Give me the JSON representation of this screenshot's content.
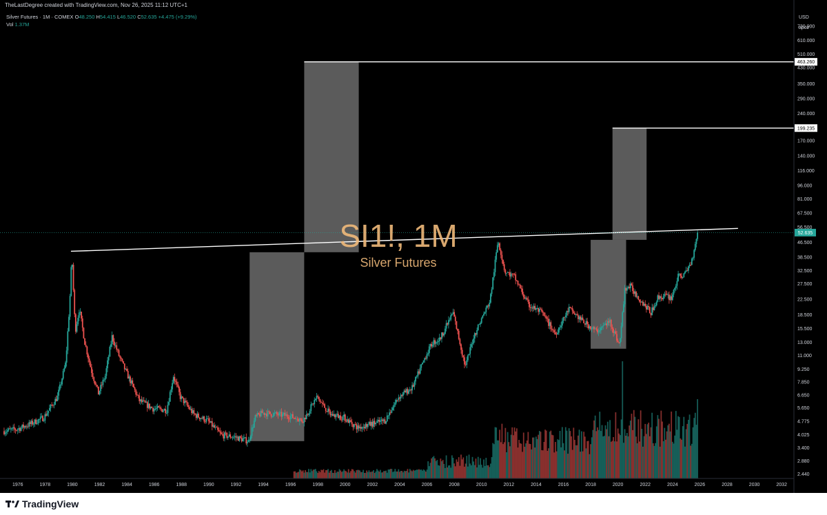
{
  "header": {
    "credit": "TheLastDegree created with TradingView.com, Nov 26, 2025 11:12 UTC+1",
    "symbol_desc": "Silver Futures · 1M · COMEX",
    "open_label": "O",
    "open": "48.250",
    "high_label": "H",
    "high": "54.415",
    "low_label": "L",
    "low": "46.520",
    "close_label": "C",
    "close": "52.635",
    "change": "+4.475 (+9.29%)",
    "vol_label": "Vol",
    "vol": "1.37M"
  },
  "price_axis": {
    "currency": "USD",
    "mode": "apoz"
  },
  "watermark": {
    "symbol": "SI1!, 1M",
    "name": "Silver Futures"
  },
  "footer": {
    "brand": "TradingView"
  },
  "colors": {
    "background": "#000000",
    "up": "#26a69a",
    "down": "#ef5350",
    "watermark": "#f0b97a",
    "box": "#7a7a7a"
  },
  "chart_data": {
    "type": "candlestick",
    "x_ticks": [
      "1976",
      "1978",
      "1980",
      "1982",
      "1984",
      "1986",
      "1988",
      "1990",
      "1992",
      "1994",
      "1996",
      "1998",
      "2000",
      "2002",
      "2004",
      "2006",
      "2008",
      "2010",
      "2012",
      "2014",
      "2016",
      "2018",
      "2020",
      "2022",
      "2024",
      "2026",
      "2028",
      "2030",
      "2032"
    ],
    "y_ticks": [
      "730.000",
      "610.000",
      "510.000",
      "430.000",
      "350.000",
      "290.000",
      "240.000",
      "200.000",
      "170.000",
      "140.000",
      "116.000",
      "96.000",
      "81.000",
      "67.500",
      "56.500",
      "46.500",
      "38.500",
      "32.500",
      "27.500",
      "22.500",
      "18.500",
      "15.500",
      "13.000",
      "11.000",
      "9.250",
      "7.850",
      "6.650",
      "5.650",
      "4.775",
      "4.025",
      "3.400",
      "2.880",
      "2.440"
    ],
    "y_scale": "log",
    "price_path": [
      [
        1975.0,
        4.2
      ],
      [
        1976.0,
        4.3
      ],
      [
        1977.0,
        4.6
      ],
      [
        1978.0,
        5.0
      ],
      [
        1979.0,
        6.5
      ],
      [
        1979.6,
        10
      ],
      [
        1979.9,
        22
      ],
      [
        1980.05,
        40
      ],
      [
        1980.3,
        15
      ],
      [
        1980.6,
        20
      ],
      [
        1981.0,
        13
      ],
      [
        1981.5,
        9
      ],
      [
        1982.0,
        6.8
      ],
      [
        1982.5,
        8.5
      ],
      [
        1983.0,
        14
      ],
      [
        1983.5,
        11
      ],
      [
        1984.0,
        9
      ],
      [
        1984.5,
        7.5
      ],
      [
        1985.0,
        6.2
      ],
      [
        1986.0,
        5.6
      ],
      [
        1987.0,
        5.5
      ],
      [
        1987.5,
        8.5
      ],
      [
        1988.0,
        6.5
      ],
      [
        1989.0,
        5.2
      ],
      [
        1990.0,
        4.8
      ],
      [
        1991.0,
        4.0
      ],
      [
        1992.0,
        3.9
      ],
      [
        1993.0,
        3.7
      ],
      [
        1993.5,
        5.0
      ],
      [
        1994.0,
        5.3
      ],
      [
        1995.0,
        5.2
      ],
      [
        1996.0,
        5.1
      ],
      [
        1997.0,
        4.8
      ],
      [
        1998.0,
        6.5
      ],
      [
        1999.0,
        5.2
      ],
      [
        2000.0,
        5.0
      ],
      [
        2001.0,
        4.4
      ],
      [
        2002.0,
        4.6
      ],
      [
        2003.0,
        4.8
      ],
      [
        2004.0,
        6.5
      ],
      [
        2005.0,
        7.3
      ],
      [
        2006.0,
        11
      ],
      [
        2006.5,
        13
      ],
      [
        2007.0,
        13.5
      ],
      [
        2008.0,
        19
      ],
      [
        2008.9,
        9.5
      ],
      [
        2009.5,
        14
      ],
      [
        2010.0,
        17
      ],
      [
        2010.7,
        22
      ],
      [
        2011.3,
        48
      ],
      [
        2011.8,
        32
      ],
      [
        2012.5,
        30
      ],
      [
        2013.5,
        21
      ],
      [
        2014.5,
        19
      ],
      [
        2015.5,
        14.5
      ],
      [
        2016.5,
        20
      ],
      [
        2017.5,
        17
      ],
      [
        2018.5,
        15
      ],
      [
        2019.5,
        17
      ],
      [
        2020.2,
        12.5
      ],
      [
        2020.6,
        26
      ],
      [
        2021.0,
        26.5
      ],
      [
        2021.6,
        23
      ],
      [
        2022.5,
        19
      ],
      [
        2023.0,
        23
      ],
      [
        2023.5,
        23.5
      ],
      [
        2024.0,
        23
      ],
      [
        2024.5,
        30
      ],
      [
        2025.0,
        31
      ],
      [
        2025.5,
        37
      ],
      [
        2025.9,
        52.635
      ]
    ],
    "resistance_line": {
      "from": [
        1979.9,
        41.5
      ],
      "to": [
        2028.8,
        55.5
      ]
    },
    "boxes": [
      {
        "x0": 1993.0,
        "x1": 1997.0,
        "y0": 3.7,
        "y1": 41.0
      },
      {
        "x0": 1997.0,
        "x1": 2001.0,
        "y0": 41.0,
        "y1": 463.26
      },
      {
        "x0": 2018.0,
        "x1": 2020.6,
        "y0": 12.0,
        "y1": 48.0
      },
      {
        "x0": 2019.6,
        "x1": 2022.1,
        "y0": 48.0,
        "y1": 199.235
      }
    ],
    "target_lines": [
      {
        "x0": 1997.0,
        "value": 463.26
      },
      {
        "x0": 2019.6,
        "value": 199.235
      }
    ],
    "labels": {
      "target1": "463.260",
      "target2": "199.235",
      "last": "52.635"
    },
    "x_range": [
      1974.7,
      2032.9
    ],
    "y_range": [
      2.3,
      900
    ]
  }
}
